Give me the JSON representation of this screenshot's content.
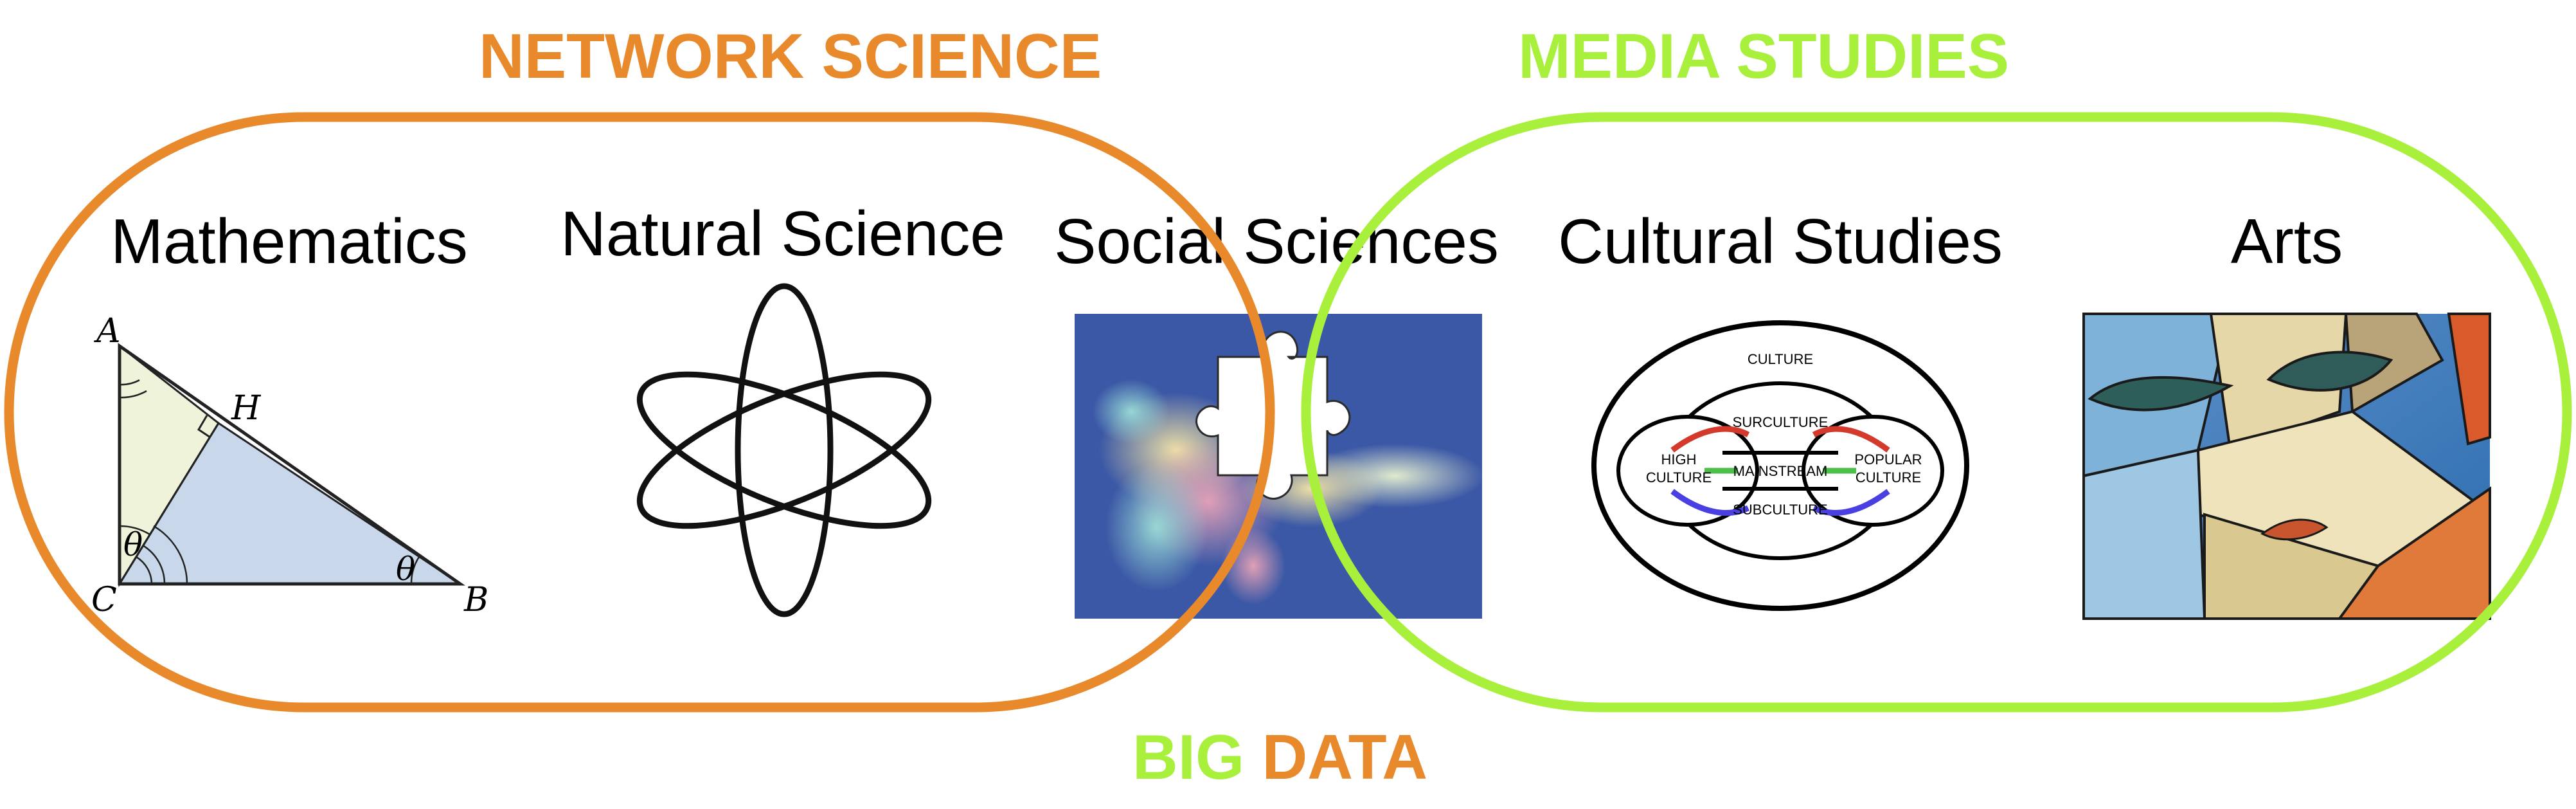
{
  "headings": {
    "network_science": "NETWORK SCIENCE",
    "media_studies": "MEDIA STUDIES",
    "big": "BIG",
    "data": "DATA"
  },
  "disciplines": {
    "mathematics": "Mathematics",
    "natural_science": "Natural Science",
    "social_sciences": "Social Sciences",
    "cultural_studies": "Cultural Studies",
    "arts": "Arts"
  },
  "triangle_labels": {
    "a": "A",
    "b": "B",
    "c": "C",
    "h": "H",
    "theta_c": "θ",
    "theta_b": "θ"
  },
  "culture_diagram": {
    "culture": "CULTURE",
    "surculture": "SURCULTURE",
    "mainstream": "MAINSTREAM",
    "subculture": "SUBCULTURE",
    "high_1": "HIGH",
    "high_2": "CULTURE",
    "popular_1": "POPULAR",
    "popular_2": "CULTURE"
  },
  "colors": {
    "network_science": "#E8892B",
    "media_studies": "#A8F03C",
    "social_bg": "#3B58A6",
    "surculture_arc": "#D33A2C",
    "mainstream_arc": "#4CC04A",
    "subculture_arc": "#4A3FE0"
  }
}
